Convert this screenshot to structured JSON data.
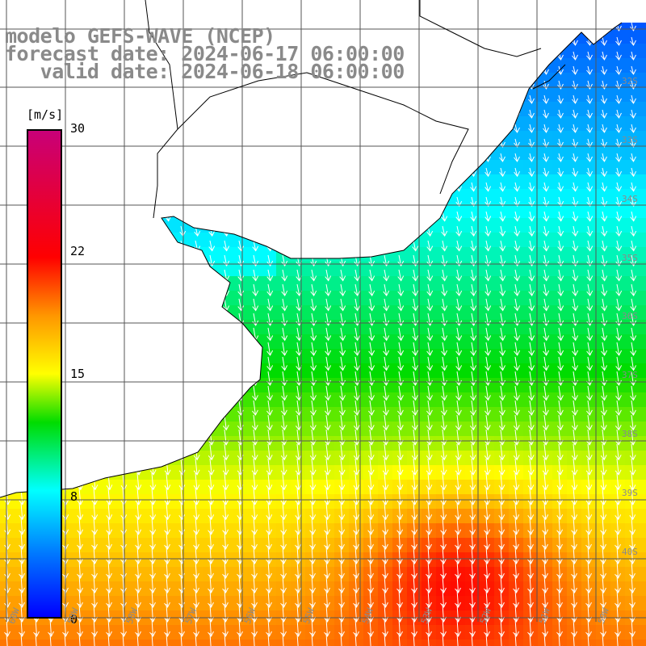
{
  "header": {
    "line1": "modelo GEFS-WAVE (NCEP)",
    "line2": "forecast date: 2024-06-17 06:00:00",
    "line3": "   valid date: 2024-06-18 06:00:00"
  },
  "colorbar": {
    "unit": "[m/s]",
    "ticks": [
      "30",
      "22",
      "15",
      "8",
      "0"
    ]
  },
  "grid": {
    "lat_labels": [
      "32S",
      "33S",
      "34S",
      "35S",
      "36S",
      "37S",
      "38S",
      "39S",
      "40S"
    ],
    "lon_labels": [
      "60W",
      "59W",
      "58W",
      "57W",
      "56W",
      "55W",
      "54W",
      "53W",
      "52W",
      "51W",
      "50W"
    ]
  },
  "colors": {
    "land": "#ffffff",
    "grid": "#555555",
    "coast": "#000000",
    "arrows": "#ffffff"
  }
}
